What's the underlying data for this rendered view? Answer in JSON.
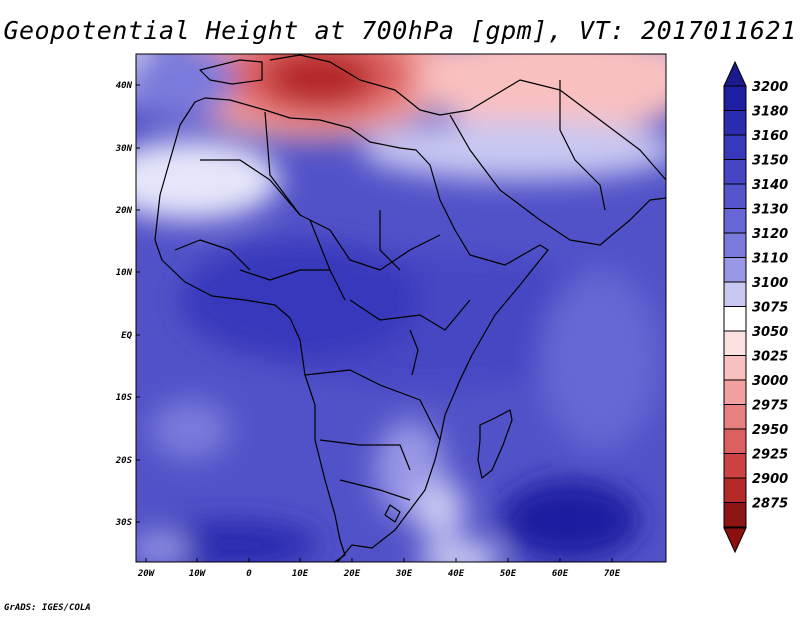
{
  "title": "Geopotential Height at 700hPa [gpm], VT: 2017011621",
  "credit": "GrADS: IGES/COLA",
  "map": {
    "lat_ticks": [
      "40N",
      "30N",
      "20N",
      "10N",
      "EQ",
      "10S",
      "20S",
      "30S"
    ],
    "lon_ticks": [
      "20W",
      "10W",
      "0",
      "10E",
      "20E",
      "30E",
      "40E",
      "50E",
      "60E",
      "70E"
    ]
  },
  "colorbar": {
    "levels": [
      "3200",
      "3180",
      "3160",
      "3150",
      "3140",
      "3130",
      "3120",
      "3110",
      "3100",
      "3075",
      "3050",
      "3025",
      "3000",
      "2975",
      "2950",
      "2925",
      "2900",
      "2875"
    ],
    "colors": [
      "#1e1ea0",
      "#2b2bb0",
      "#3838bc",
      "#4646c4",
      "#5555cc",
      "#6666d4",
      "#7a7adc",
      "#9898e6",
      "#c8c8f2",
      "#ffffff",
      "#fde0e0",
      "#f9c0c0",
      "#f2a0a0",
      "#e88080",
      "#dd6060",
      "#cd4242",
      "#b52828",
      "#8e1414"
    ],
    "top_arrow_color": "#1a1a8c",
    "bottom_arrow_color": "#8c1010"
  }
}
